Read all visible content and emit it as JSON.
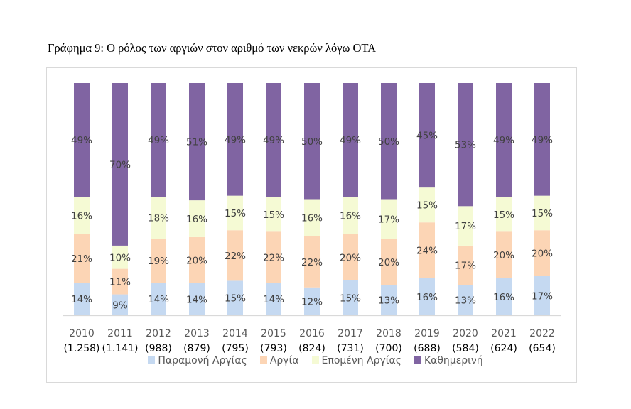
{
  "figure": {
    "title": "Γράφημα 9: Ο ρόλος των αργιών στον αριθμό των νεκρών λόγω ΟΤΑ"
  },
  "chart_data": {
    "type": "bar",
    "stacked": true,
    "percent_stacked": true,
    "title": "",
    "xlabel": "",
    "ylabel": "",
    "ylim": [
      0,
      100
    ],
    "grid": false,
    "legend_position": "bottom",
    "categories": [
      "2010",
      "2011",
      "2012",
      "2013",
      "2014",
      "2015",
      "2016",
      "2017",
      "2018",
      "2019",
      "2020",
      "2021",
      "2022"
    ],
    "category_sublabels": [
      "(1.258)",
      "(1.141)",
      "(988)",
      "(879)",
      "(795)",
      "(793)",
      "(824)",
      "(731)",
      "(700)",
      "(688)",
      "(584)",
      "(624)",
      "(654)"
    ],
    "series": [
      {
        "name": "Παραμονή Αργίας",
        "color": "#C5D9F1",
        "values": [
          14,
          9,
          14,
          14,
          15,
          14,
          12,
          15,
          13,
          16,
          13,
          16,
          17
        ]
      },
      {
        "name": "Αργία",
        "color": "#FCD5B5",
        "values": [
          21,
          11,
          19,
          20,
          22,
          22,
          22,
          20,
          20,
          24,
          17,
          20,
          20
        ]
      },
      {
        "name": "Επομένη Αργίας",
        "color": "#F5FAD4",
        "values": [
          16,
          10,
          18,
          16,
          15,
          15,
          16,
          16,
          17,
          15,
          17,
          15,
          15
        ]
      },
      {
        "name": "Καθημερινή",
        "color": "#8064A2",
        "values": [
          49,
          70,
          49,
          51,
          49,
          49,
          50,
          49,
          50,
          45,
          53,
          49,
          49
        ]
      }
    ],
    "value_label_suffix": "%"
  }
}
